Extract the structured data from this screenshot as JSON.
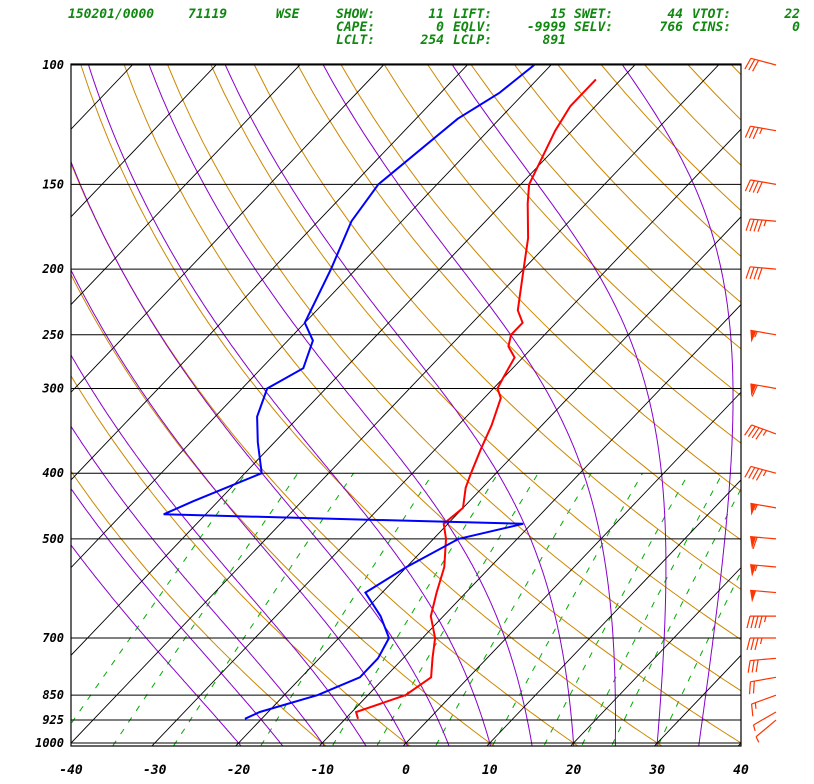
{
  "header": {
    "line1": [
      {
        "label": "150201/0000",
        "x_text": "150201/0000"
      },
      {
        "label": "71119"
      },
      {
        "label": "WSE"
      }
    ],
    "fields": [
      {
        "label": "SHOW:",
        "value": "11"
      },
      {
        "label": "LIFT:",
        "value": "15"
      },
      {
        "label": "SWET:",
        "value": "44"
      },
      {
        "label": "VTOT:",
        "value": "22"
      },
      {
        "label": "CAPE:",
        "value": "0"
      },
      {
        "label": "EQLV:",
        "value": "-9999"
      },
      {
        "label": "SELV:",
        "value": "766"
      },
      {
        "label": "CINS:",
        "value": "0"
      },
      {
        "label": "LCLT:",
        "value": "254"
      },
      {
        "label": "LCLP:",
        "value": "891"
      }
    ]
  },
  "chart_data": {
    "type": "line",
    "subtype": "skew-t log-p sounding",
    "x_axis": {
      "ticks": [
        "-40",
        "-30",
        "-20",
        "-10",
        "0",
        "10",
        "20",
        "30",
        "40"
      ],
      "range": [
        -40,
        40
      ],
      "unit_shown": ""
    },
    "y_axis": {
      "scale": "log",
      "range": [
        1000,
        100
      ],
      "ticks": [
        "100",
        "150",
        "200",
        "250",
        "300",
        "400",
        "500",
        "700",
        "850",
        "925",
        "1000"
      ],
      "tick_values": [
        100,
        150,
        200,
        250,
        300,
        400,
        500,
        700,
        850,
        925,
        1000
      ]
    },
    "colors": {
      "temperature": "#ff0000",
      "dewpoint": "#0000ff",
      "isotherm": "#000000",
      "dry_adiabat": "#cc8800",
      "moist_adiabat": "#8800cc",
      "mixing_ratio": "#00aa00",
      "wind_barb": "#ff3300",
      "header": "#118811"
    },
    "series": [
      {
        "key": "temperature",
        "points": [
          [
            921,
            -8.5
          ],
          [
            900,
            -9.5
          ],
          [
            850,
            -5.5
          ],
          [
            800,
            -4.5
          ],
          [
            750,
            -6.5
          ],
          [
            700,
            -8.5
          ],
          [
            650,
            -11.5
          ],
          [
            600,
            -13.5
          ],
          [
            550,
            -15.5
          ],
          [
            500,
            -18.5
          ],
          [
            475,
            -20.5
          ],
          [
            450,
            -20
          ],
          [
            420,
            -22
          ],
          [
            400,
            -23
          ],
          [
            370,
            -24.5
          ],
          [
            340,
            -26
          ],
          [
            310,
            -28
          ],
          [
            300,
            -29.5
          ],
          [
            290,
            -30
          ],
          [
            270,
            -31
          ],
          [
            260,
            -33
          ],
          [
            250,
            -34
          ],
          [
            240,
            -34
          ],
          [
            230,
            -36
          ],
          [
            200,
            -40
          ],
          [
            180,
            -43
          ],
          [
            160,
            -47
          ],
          [
            150,
            -49
          ],
          [
            125,
            -52
          ],
          [
            115,
            -53
          ],
          [
            105,
            -53
          ]
        ]
      },
      {
        "key": "dewpoint",
        "points": [
          [
            921,
            -22
          ],
          [
            900,
            -21
          ],
          [
            850,
            -16
          ],
          [
            800,
            -13
          ],
          [
            750,
            -13
          ],
          [
            700,
            -14
          ],
          [
            650,
            -17.5
          ],
          [
            600,
            -22
          ],
          [
            550,
            -20
          ],
          [
            500,
            -17
          ],
          [
            475,
            -11
          ],
          [
            460,
            -55
          ],
          [
            440,
            -53
          ],
          [
            400,
            -48
          ],
          [
            360,
            -52
          ],
          [
            330,
            -55
          ],
          [
            300,
            -57
          ],
          [
            280,
            -55
          ],
          [
            255,
            -57
          ],
          [
            240,
            -60
          ],
          [
            200,
            -63
          ],
          [
            170,
            -66
          ],
          [
            150,
            -67
          ],
          [
            120,
            -65
          ],
          [
            110,
            -63
          ],
          [
            100,
            -62
          ]
        ]
      }
    ],
    "wind_barbs": [
      {
        "p": 925,
        "speed_kt": 5,
        "dir_deg": 230
      },
      {
        "p": 900,
        "speed_kt": 5,
        "dir_deg": 240
      },
      {
        "p": 850,
        "speed_kt": 15,
        "dir_deg": 250
      },
      {
        "p": 800,
        "speed_kt": 20,
        "dir_deg": 260
      },
      {
        "p": 750,
        "speed_kt": 30,
        "dir_deg": 265
      },
      {
        "p": 700,
        "speed_kt": 35,
        "dir_deg": 270
      },
      {
        "p": 650,
        "speed_kt": 45,
        "dir_deg": 270
      },
      {
        "p": 600,
        "speed_kt": 50,
        "dir_deg": 275
      },
      {
        "p": 550,
        "speed_kt": 55,
        "dir_deg": 275
      },
      {
        "p": 500,
        "speed_kt": 60,
        "dir_deg": 275
      },
      {
        "p": 450,
        "speed_kt": 55,
        "dir_deg": 280
      },
      {
        "p": 400,
        "speed_kt": 45,
        "dir_deg": 285
      },
      {
        "p": 350,
        "speed_kt": 45,
        "dir_deg": 290
      },
      {
        "p": 300,
        "speed_kt": 60,
        "dir_deg": 280
      },
      {
        "p": 250,
        "speed_kt": 55,
        "dir_deg": 280
      },
      {
        "p": 200,
        "speed_kt": 40,
        "dir_deg": 275
      },
      {
        "p": 170,
        "speed_kt": 45,
        "dir_deg": 275
      },
      {
        "p": 150,
        "speed_kt": 40,
        "dir_deg": 280
      },
      {
        "p": 125,
        "speed_kt": 35,
        "dir_deg": 280
      },
      {
        "p": 100,
        "speed_kt": 30,
        "dir_deg": 285
      }
    ],
    "isotherm_spacing_c": 10,
    "dry_adiabats_theta_c": [
      -10,
      0,
      10,
      20,
      30,
      40,
      50,
      60,
      70,
      80,
      90,
      100,
      110,
      120,
      130,
      140,
      150,
      160,
      170,
      180,
      190,
      200
    ],
    "moist_adiabats_c": [
      -20,
      -15,
      -10,
      -5,
      0,
      5,
      10,
      15,
      20,
      25,
      30,
      35
    ],
    "mixing_ratio_gkg": [
      0.1,
      0.2,
      0.4,
      1,
      2,
      3,
      5,
      8,
      12,
      16,
      20,
      28
    ]
  }
}
